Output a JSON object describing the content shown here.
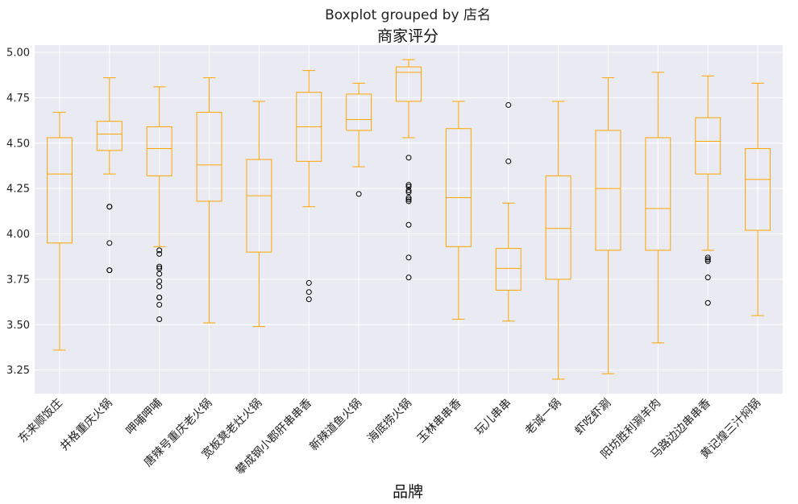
{
  "chart_data": {
    "type": "boxplot",
    "suptitle": "Boxplot grouped by 店名",
    "title": "商家评分",
    "xlabel": "品牌",
    "ylabel": "",
    "ylim": [
      3.12,
      5.04
    ],
    "yticks": [
      "3.25",
      "3.50",
      "3.75",
      "4.00",
      "4.25",
      "4.50",
      "4.75",
      "5.00"
    ],
    "grid": true,
    "box_color": "#FFA500",
    "background_color": "#EAEAF2",
    "categories": [
      "东来顺饭庄",
      "井格重庆火锅",
      "呷哺呷哺",
      "唐辣号重庆老火锅",
      "宽板凳老灶火锅",
      "攀成钢小郡肝串串香",
      "新辣道鱼火锅",
      "海底捞火锅",
      "玉林串串香",
      "玩儿串串",
      "老诚一锅",
      "虾吃虾涮",
      "阳坊胜利涮羊肉",
      "马路边边串串香",
      "黄记煌三汁焖锅"
    ],
    "boxes": [
      {
        "whislo": 3.36,
        "q1": 3.95,
        "med": 4.33,
        "q3": 4.53,
        "whishi": 4.67,
        "fliers": []
      },
      {
        "whislo": 4.33,
        "q1": 4.46,
        "med": 4.55,
        "q3": 4.62,
        "whishi": 4.86,
        "fliers": [
          4.15,
          4.15,
          3.95,
          3.8,
          3.8
        ]
      },
      {
        "whislo": 3.93,
        "q1": 4.32,
        "med": 4.47,
        "q3": 4.59,
        "whishi": 4.81,
        "fliers": [
          3.91,
          3.89,
          3.82,
          3.81,
          3.78,
          3.74,
          3.71,
          3.65,
          3.65,
          3.61,
          3.53
        ]
      },
      {
        "whislo": 3.51,
        "q1": 4.18,
        "med": 4.38,
        "q3": 4.67,
        "whishi": 4.86,
        "fliers": []
      },
      {
        "whislo": 3.49,
        "q1": 3.9,
        "med": 4.21,
        "q3": 4.41,
        "whishi": 4.73,
        "fliers": []
      },
      {
        "whislo": 4.15,
        "q1": 4.4,
        "med": 4.59,
        "q3": 4.78,
        "whishi": 4.9,
        "fliers": [
          3.73,
          3.68,
          3.64
        ]
      },
      {
        "whislo": 4.37,
        "q1": 4.57,
        "med": 4.63,
        "q3": 4.77,
        "whishi": 4.83,
        "fliers": [
          4.22
        ]
      },
      {
        "whislo": 4.53,
        "q1": 4.73,
        "med": 4.89,
        "q3": 4.92,
        "whishi": 4.96,
        "fliers": [
          4.42,
          4.27,
          4.26,
          4.24,
          4.23,
          4.2,
          4.19,
          4.18,
          4.05,
          3.87,
          3.76
        ]
      },
      {
        "whislo": 3.53,
        "q1": 3.93,
        "med": 4.2,
        "q3": 4.58,
        "whishi": 4.73,
        "fliers": []
      },
      {
        "whislo": 3.52,
        "q1": 3.69,
        "med": 3.81,
        "q3": 3.92,
        "whishi": 4.17,
        "fliers": [
          4.71,
          4.4
        ]
      },
      {
        "whislo": 3.2,
        "q1": 3.75,
        "med": 4.03,
        "q3": 4.32,
        "whishi": 4.73,
        "fliers": []
      },
      {
        "whislo": 3.23,
        "q1": 3.91,
        "med": 4.25,
        "q3": 4.57,
        "whishi": 4.86,
        "fliers": []
      },
      {
        "whislo": 3.4,
        "q1": 3.91,
        "med": 4.14,
        "q3": 4.53,
        "whishi": 4.89,
        "fliers": []
      },
      {
        "whislo": 3.91,
        "q1": 4.33,
        "med": 4.51,
        "q3": 4.64,
        "whishi": 4.87,
        "fliers": [
          3.87,
          3.86,
          3.85,
          3.76,
          3.62
        ]
      },
      {
        "whislo": 3.55,
        "q1": 4.02,
        "med": 4.3,
        "q3": 4.47,
        "whishi": 4.83,
        "fliers": []
      }
    ]
  }
}
